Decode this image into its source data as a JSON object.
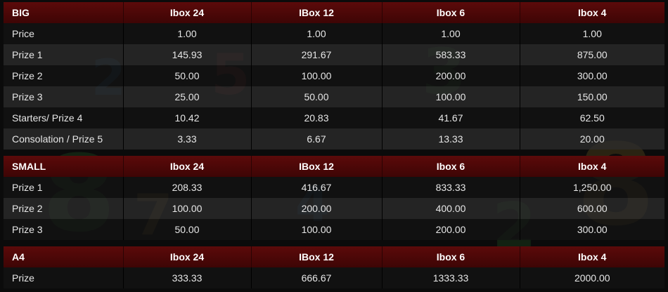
{
  "tables": [
    {
      "headers": [
        "BIG",
        "Ibox 24",
        "IBox 12",
        "Ibox 6",
        "Ibox 4"
      ],
      "rows": [
        [
          "Price",
          "1.00",
          "1.00",
          "1.00",
          "1.00"
        ],
        [
          "Prize 1",
          "145.93",
          "291.67",
          "583.33",
          "875.00"
        ],
        [
          "Prize 2",
          "50.00",
          "100.00",
          "200.00",
          "300.00"
        ],
        [
          "Prize 3",
          "25.00",
          "50.00",
          "100.00",
          "150.00"
        ],
        [
          "Starters/ Prize 4",
          "10.42",
          "20.83",
          "41.67",
          "62.50"
        ],
        [
          "Consolation / Prize 5",
          "3.33",
          "6.67",
          "13.33",
          "20.00"
        ]
      ]
    },
    {
      "headers": [
        "SMALL",
        "Ibox 24",
        "IBox 12",
        "Ibox 6",
        "Ibox 4"
      ],
      "rows": [
        [
          "Prize 1",
          "208.33",
          "416.67",
          "833.33",
          "1,250.00"
        ],
        [
          "Prize 2",
          "100.00",
          "200.00",
          "400.00",
          "600.00"
        ],
        [
          "Prize 3",
          "50.00",
          "100.00",
          "200.00",
          "300.00"
        ]
      ]
    },
    {
      "headers": [
        "A4",
        "Ibox 24",
        "IBox 12",
        "Ibox 6",
        "Ibox 4"
      ],
      "rows": [
        [
          "Prize",
          "333.33",
          "666.67",
          "1333.33",
          "2000.00"
        ]
      ]
    }
  ],
  "colors": {
    "header_bg": "#4e0808",
    "row_dark": "#141414",
    "row_light": "#2e2e2e",
    "text": "#e6e6e6"
  }
}
